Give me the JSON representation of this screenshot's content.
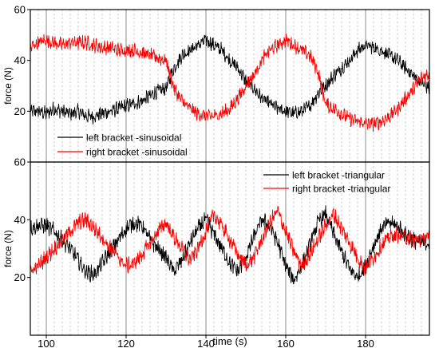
{
  "chart_data": [
    {
      "type": "line",
      "title": "",
      "xlabel": "",
      "ylabel": "force (N)",
      "xlim": [
        96,
        196
      ],
      "ylim": [
        0,
        60
      ],
      "yticks": [
        20,
        40,
        60
      ],
      "legend_position": "bottom-left",
      "series": [
        {
          "name": "left bracket -sinusoidal",
          "color": "#000000",
          "x": [
            96,
            98,
            100,
            102,
            104,
            106,
            108,
            110,
            112,
            114,
            116,
            118,
            120,
            122,
            124,
            126,
            128,
            130,
            132,
            134,
            136,
            138,
            140,
            142,
            144,
            146,
            148,
            150,
            152,
            154,
            156,
            158,
            160,
            162,
            164,
            166,
            168,
            170,
            172,
            174,
            176,
            178,
            180,
            182,
            184,
            186,
            188,
            190,
            192,
            194,
            196
          ],
          "y": [
            20,
            20,
            19,
            21,
            20,
            19,
            20,
            18,
            18,
            19,
            20,
            21,
            22,
            23,
            24,
            26,
            28,
            29,
            37,
            42,
            44,
            46,
            48,
            46,
            44,
            40,
            37,
            32,
            29,
            25,
            23,
            21,
            20,
            19,
            20,
            22,
            27,
            30,
            34,
            37,
            40,
            44,
            46,
            45,
            44,
            42,
            40,
            37,
            34,
            31,
            29
          ]
        },
        {
          "name": "right bracket -sinusoidal",
          "color": "#ff0000",
          "x": [
            96,
            98,
            100,
            102,
            104,
            106,
            108,
            110,
            112,
            114,
            116,
            118,
            120,
            122,
            124,
            126,
            128,
            130,
            132,
            134,
            136,
            138,
            140,
            142,
            144,
            146,
            148,
            150,
            152,
            154,
            156,
            158,
            160,
            162,
            164,
            166,
            168,
            170,
            172,
            174,
            176,
            178,
            180,
            182,
            184,
            186,
            188,
            190,
            192,
            194,
            196
          ],
          "y": [
            45,
            47,
            48,
            47,
            46,
            47,
            47,
            47,
            46,
            45,
            45,
            44,
            44,
            44,
            43,
            42,
            41,
            40,
            29,
            24,
            21,
            19,
            18,
            18,
            19,
            21,
            25,
            30,
            34,
            40,
            44,
            46,
            48,
            46,
            44,
            42,
            36,
            23,
            21,
            19,
            17,
            16,
            15,
            15,
            16,
            18,
            21,
            25,
            29,
            33,
            35
          ]
        }
      ]
    },
    {
      "type": "line",
      "title": "",
      "xlabel": "time (s)",
      "ylabel": "force (N)",
      "xlim": [
        96,
        196
      ],
      "ylim": [
        0,
        60
      ],
      "yticks": [
        20,
        40,
        60
      ],
      "xticks": [
        100,
        120,
        140,
        160,
        180
      ],
      "legend_position": "top-right",
      "series": [
        {
          "name": "left bracket -triangular",
          "color": "#000000",
          "x": [
            96,
            98,
            100,
            102,
            104,
            106,
            108,
            110,
            112,
            114,
            116,
            118,
            120,
            122,
            124,
            126,
            128,
            130,
            132,
            134,
            136,
            138,
            140,
            142,
            144,
            146,
            148,
            150,
            152,
            154,
            156,
            158,
            160,
            162,
            164,
            166,
            168,
            170,
            172,
            174,
            176,
            178,
            180,
            182,
            184,
            186,
            188,
            190,
            192,
            194,
            196
          ],
          "y": [
            37,
            38,
            38,
            36,
            33,
            30,
            26,
            22,
            21,
            25,
            29,
            33,
            37,
            39,
            38,
            33,
            30,
            27,
            22,
            26,
            32,
            37,
            40,
            35,
            30,
            25,
            22,
            27,
            34,
            40,
            38,
            32,
            24,
            19,
            24,
            31,
            39,
            42,
            35,
            29,
            23,
            20,
            24,
            31,
            37,
            39,
            38,
            35,
            33,
            32,
            32
          ]
        },
        {
          "name": "right bracket  -triangular",
          "color": "#ff0000",
          "x": [
            96,
            98,
            100,
            102,
            104,
            106,
            108,
            110,
            112,
            114,
            116,
            118,
            120,
            122,
            124,
            126,
            128,
            130,
            132,
            134,
            136,
            138,
            140,
            142,
            144,
            146,
            148,
            150,
            152,
            154,
            156,
            158,
            160,
            162,
            164,
            166,
            168,
            170,
            172,
            174,
            176,
            178,
            180,
            182,
            184,
            186,
            188,
            190,
            192,
            194,
            196
          ],
          "y": [
            22,
            24,
            27,
            30,
            33,
            36,
            39,
            40,
            37,
            34,
            30,
            27,
            24,
            25,
            28,
            32,
            36,
            39,
            34,
            30,
            26,
            30,
            36,
            42,
            38,
            33,
            28,
            24,
            27,
            33,
            39,
            43,
            36,
            29,
            24,
            28,
            33,
            38,
            42,
            37,
            32,
            27,
            23,
            27,
            31,
            34,
            35,
            34,
            33,
            33,
            34
          ]
        }
      ]
    }
  ]
}
